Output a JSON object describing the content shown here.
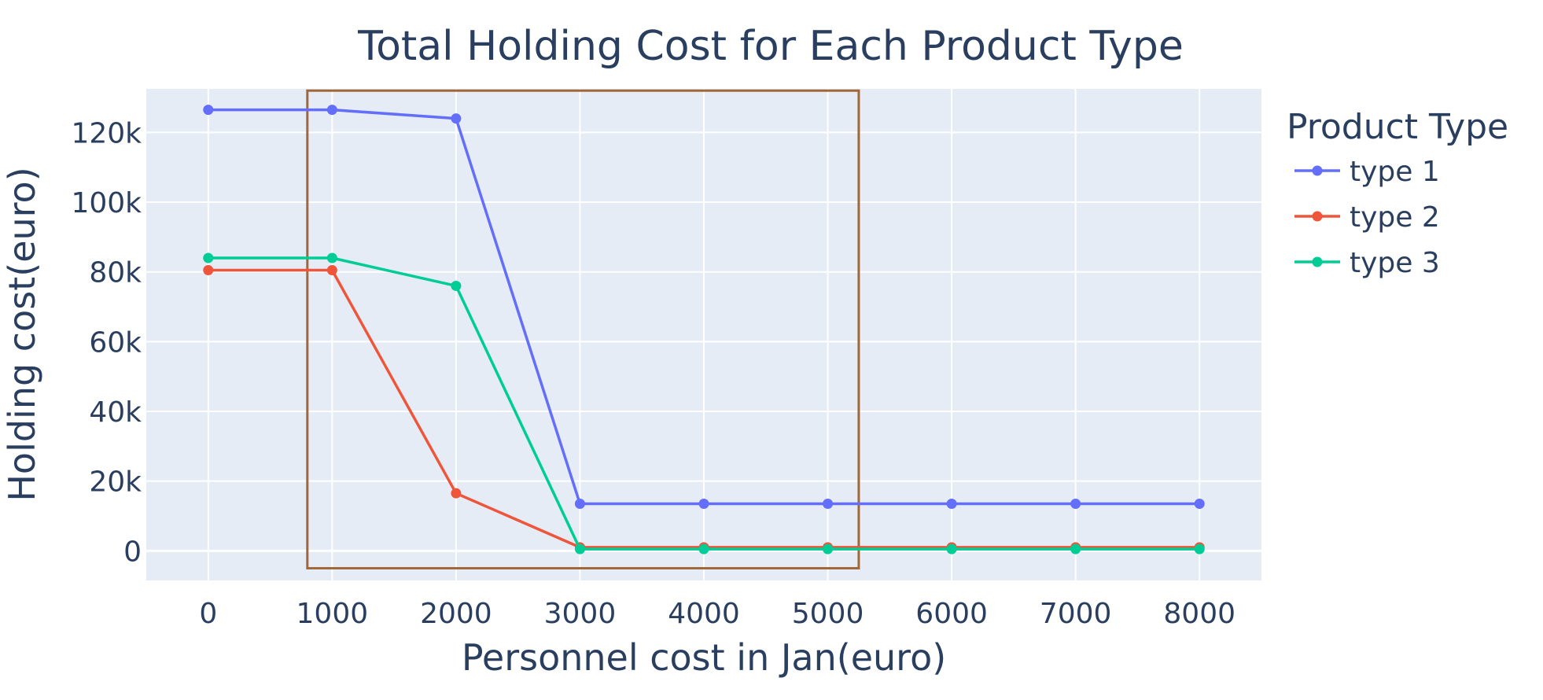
{
  "chart_data": {
    "type": "line",
    "title": "Total Holding Cost for Each Product Type",
    "xlabel": "Personnel cost in Jan(euro)",
    "ylabel": "Holding cost(euro)",
    "legend_title": "Product Type",
    "legend_position": "right",
    "grid": true,
    "background": "#e5ecf6",
    "x": [
      0,
      1000,
      2000,
      3000,
      4000,
      5000,
      6000,
      7000,
      8000
    ],
    "x_tick_labels": [
      "0",
      "1000",
      "2000",
      "3000",
      "4000",
      "5000",
      "6000",
      "7000",
      "8000"
    ],
    "xlim": [
      -500,
      8500
    ],
    "y_tick_values": [
      0,
      20000,
      40000,
      60000,
      80000,
      100000,
      120000
    ],
    "y_tick_labels": [
      "0",
      "20k",
      "40k",
      "60k",
      "80k",
      "100k",
      "120k"
    ],
    "ylim": [
      -8500,
      132500
    ],
    "series": [
      {
        "name": "type 1",
        "color": "#636efa",
        "values": [
          126500,
          126500,
          124000,
          13500,
          13500,
          13500,
          13500,
          13500,
          13500
        ]
      },
      {
        "name": "type 2",
        "color": "#ef553b",
        "values": [
          80500,
          80500,
          16500,
          1000,
          1000,
          1000,
          1000,
          1000,
          1000
        ]
      },
      {
        "name": "type 3",
        "color": "#00cc96",
        "values": [
          84000,
          84000,
          76000,
          500,
          500,
          500,
          500,
          500,
          500
        ]
      }
    ],
    "highlight_box": {
      "x_range": [
        800,
        5250
      ],
      "y_range": [
        -5000,
        132000
      ],
      "color": "#a0673a"
    }
  }
}
